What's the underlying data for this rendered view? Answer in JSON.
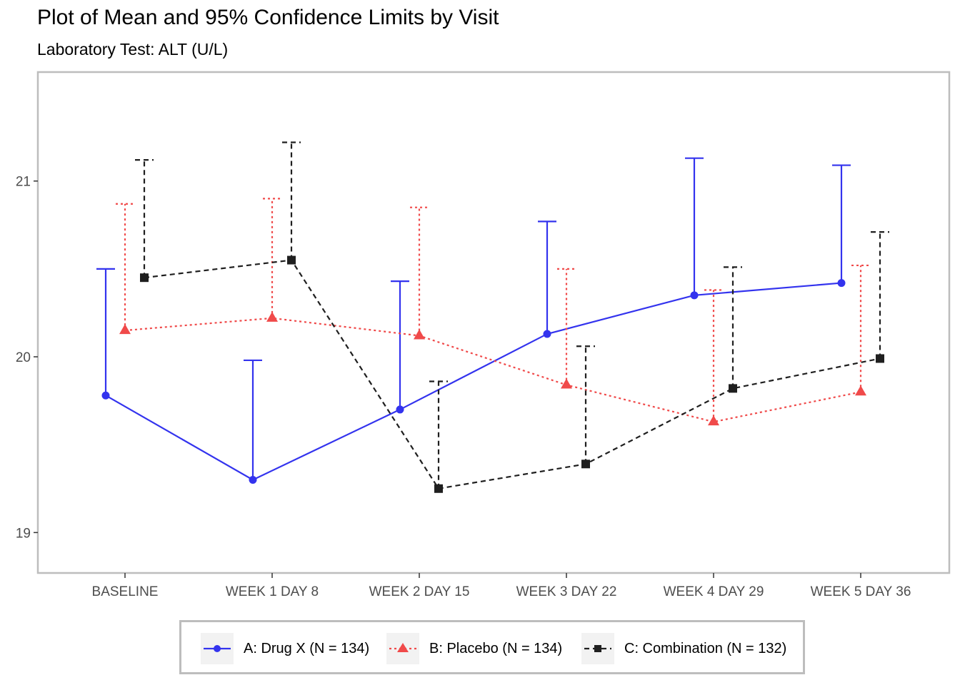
{
  "title": "Plot of Mean and 95% Confidence Limits by Visit",
  "subtitle": "Laboratory Test: ALT (U/L)",
  "chart_data": {
    "type": "line",
    "title": "Plot of Mean and 95% Confidence Limits by Visit",
    "subtitle": "Laboratory Test: ALT (U/L)",
    "xlabel": "",
    "ylabel": "",
    "categories": [
      "BASELINE",
      "WEEK 1 DAY 8",
      "WEEK 2 DAY 15",
      "WEEK 3 DAY 22",
      "WEEK 4 DAY 29",
      "WEEK 5 DAY 36"
    ],
    "ylim": [
      18.77,
      21.62
    ],
    "yticks": [
      19,
      20,
      21
    ],
    "grid": false,
    "legend_position": "bottom",
    "error_bars": "upper 95% confidence limit",
    "series": [
      {
        "name": "A: Drug X (N = 134)",
        "color": "#3333ee",
        "line_style": "solid",
        "marker": "circle",
        "mean": [
          19.78,
          19.3,
          19.7,
          20.13,
          20.35,
          20.42
        ],
        "upper": [
          20.5,
          19.98,
          20.43,
          20.77,
          21.13,
          21.09
        ]
      },
      {
        "name": "B: Placebo (N = 134)",
        "color": "#f04a4a",
        "line_style": "dotted",
        "marker": "triangle",
        "mean": [
          20.15,
          20.22,
          20.12,
          19.84,
          19.63,
          19.8
        ],
        "upper": [
          20.87,
          20.9,
          20.85,
          20.5,
          20.38,
          20.52
        ]
      },
      {
        "name": "C: Combination (N = 132)",
        "color": "#1f1f1f",
        "line_style": "dashed",
        "marker": "square",
        "mean": [
          20.45,
          20.55,
          19.25,
          19.39,
          19.82,
          19.99
        ],
        "upper": [
          21.12,
          21.22,
          19.86,
          20.06,
          20.51,
          20.71
        ]
      }
    ]
  }
}
